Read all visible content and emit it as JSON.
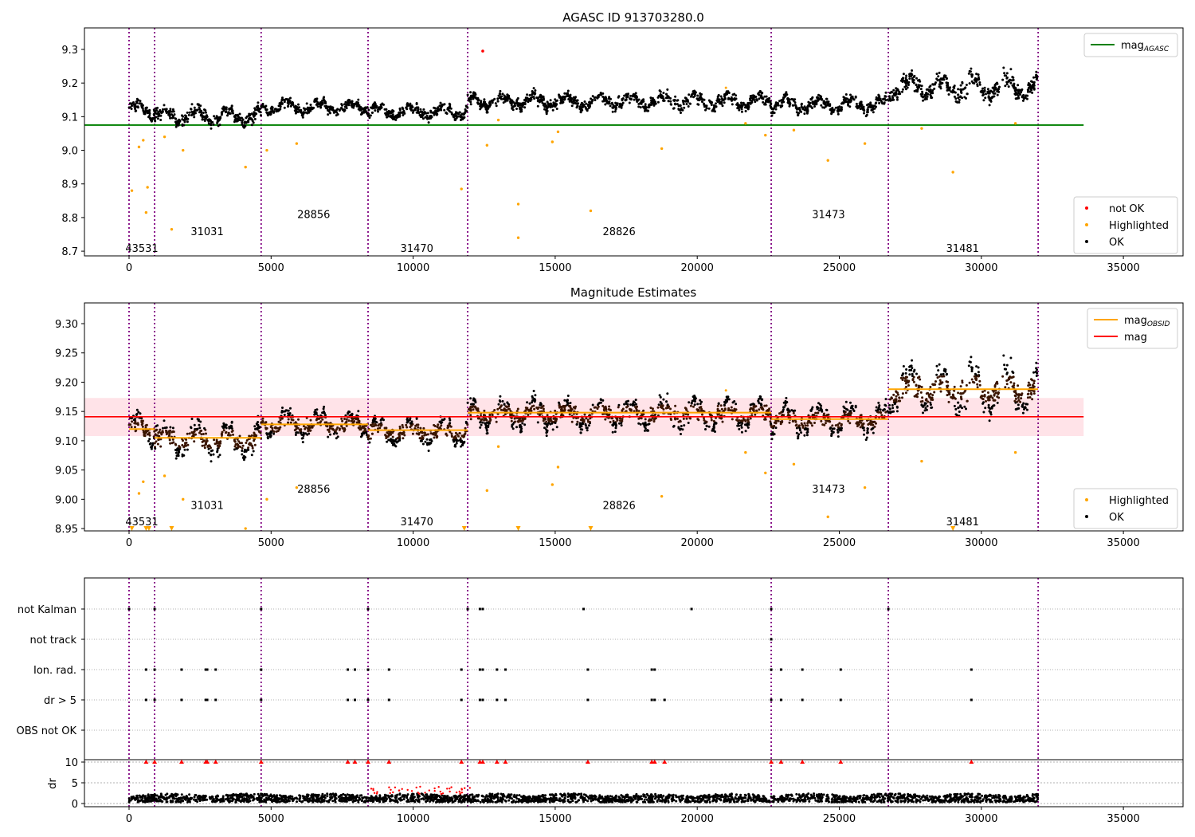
{
  "chart_data": [
    {
      "type": "scatter",
      "title": "AGASC ID 913703280.0",
      "xlim": [
        -1570,
        37100
      ],
      "ylim": [
        8.686,
        9.364
      ],
      "xticks": [
        0,
        5000,
        10000,
        15000,
        20000,
        25000,
        30000,
        35000
      ],
      "yticks": [
        "8.7",
        "8.8",
        "8.9",
        "9.0",
        "9.1",
        "9.2",
        "9.3"
      ],
      "mag_agasc": 9.075,
      "mag_agasc_xrange": [
        -1570,
        33600
      ],
      "legend_top": {
        "placement": "top-right",
        "entries": [
          {
            "label": "mag",
            "sub": "AGASC",
            "color": "#008000"
          }
        ]
      },
      "legend_bottom": {
        "placement": "bottom-right",
        "entries": [
          {
            "label": "not OK",
            "color": "#ff0000"
          },
          {
            "label": "Highlighted",
            "color": "#ffa500"
          },
          {
            "label": "OK",
            "color": "#000000"
          }
        ]
      },
      "segment_labels": [
        {
          "text": "43531",
          "x": 450,
          "y": 8.71
        },
        {
          "text": "31031",
          "x": 2750,
          "y": 8.76
        },
        {
          "text": "28856",
          "x": 6500,
          "y": 8.81
        },
        {
          "text": "31470",
          "x": 10130,
          "y": 8.71
        },
        {
          "text": "28826",
          "x": 17250,
          "y": 8.76
        },
        {
          "text": "31473",
          "x": 24620,
          "y": 8.81
        },
        {
          "text": "31481",
          "x": 29340,
          "y": 8.71
        }
      ],
      "not_ok_points": [
        [
          12450,
          9.295
        ]
      ],
      "highlighted_outliers": [
        [
          100,
          8.88
        ],
        [
          350,
          9.01
        ],
        [
          500,
          9.03
        ],
        [
          600,
          8.815
        ],
        [
          650,
          8.89
        ],
        [
          1250,
          9.04
        ],
        [
          1500,
          8.765
        ],
        [
          1900,
          9.0
        ],
        [
          4100,
          8.95
        ],
        [
          4850,
          9.0
        ],
        [
          5900,
          9.02
        ],
        [
          11700,
          8.885
        ],
        [
          12600,
          9.015
        ],
        [
          13000,
          9.09
        ],
        [
          13700,
          8.84
        ],
        [
          13700,
          8.74
        ],
        [
          14900,
          9.025
        ],
        [
          15100,
          9.055
        ],
        [
          16250,
          8.82
        ],
        [
          18750,
          9.005
        ],
        [
          21700,
          9.08
        ],
        [
          22400,
          9.045
        ],
        [
          23400,
          9.06
        ],
        [
          24600,
          8.97
        ],
        [
          25900,
          9.02
        ],
        [
          27900,
          9.065
        ],
        [
          29000,
          8.935
        ],
        [
          31200,
          9.08
        ]
      ]
    },
    {
      "type": "scatter",
      "title": "Magnitude Estimates",
      "xlim": [
        -1570,
        37100
      ],
      "ylim": [
        8.946,
        9.3354
      ],
      "xticks": [
        0,
        5000,
        10000,
        15000,
        20000,
        25000,
        30000,
        35000
      ],
      "yticks": [
        "8.95",
        "9.00",
        "9.05",
        "9.10",
        "9.15",
        "9.20",
        "9.25",
        "9.30"
      ],
      "mag": 9.141,
      "mag_band": [
        9.108,
        9.173
      ],
      "mag_xrange": [
        -1570,
        33600
      ],
      "legend_top": {
        "placement": "top-right",
        "entries": [
          {
            "label": "mag",
            "sub": "OBSID",
            "color": "#ffa500"
          },
          {
            "label": "mag",
            "sub": "",
            "color": "#ff0000"
          }
        ]
      },
      "legend_bottom": {
        "placement": "bottom-right",
        "entries": [
          {
            "label": "Highlighted",
            "color": "#ffa500"
          },
          {
            "label": "OK",
            "color": "#000000"
          }
        ]
      },
      "segment_labels": [
        {
          "text": "43531",
          "x": 450,
          "y": 8.962
        },
        {
          "text": "31031",
          "x": 2750,
          "y": 8.99
        },
        {
          "text": "28856",
          "x": 6500,
          "y": 9.018
        },
        {
          "text": "31470",
          "x": 10130,
          "y": 8.962
        },
        {
          "text": "28826",
          "x": 17250,
          "y": 8.99
        },
        {
          "text": "31473",
          "x": 24620,
          "y": 9.018
        },
        {
          "text": "31481",
          "x": 29340,
          "y": 8.962
        }
      ],
      "clipped_low_x": [
        100,
        600,
        700,
        1500,
        11800,
        13700,
        16250,
        29000
      ]
    },
    {
      "type": "scatter",
      "flag_rows": [
        "not Kalman",
        "not track",
        "Ion. rad.",
        "dr > 5",
        "OBS not OK"
      ],
      "flag_events": {
        "not Kalman": [
          0,
          900,
          4650,
          8413,
          11919,
          12350,
          12450,
          16000,
          19800,
          22604,
          26727
        ],
        "not track": [
          22604
        ],
        "Ion. rad.": [
          600,
          900,
          1850,
          2700,
          2750,
          3050,
          4650,
          7700,
          7950,
          8413,
          9150,
          11700,
          12350,
          12450,
          12950,
          13250,
          16150,
          18400,
          18500,
          22604,
          22950,
          23700,
          25050,
          29650
        ],
        "dr > 5": [
          600,
          900,
          1850,
          2700,
          2750,
          3050,
          4650,
          7700,
          7950,
          8413,
          9150,
          11700,
          12350,
          12450,
          12950,
          13250,
          16150,
          18400,
          18500,
          18850,
          22604,
          22950,
          23700,
          25050,
          29650
        ],
        "OBS not OK": []
      },
      "dr_ylabel": "dr",
      "dr_yticks": [
        "0",
        "5",
        "10"
      ],
      "dr_ylim": [
        -0.5,
        10.6
      ],
      "dr_clip": 10
    }
  ],
  "obsid_segments": [
    {
      "start": 0,
      "end": 900,
      "mean": 9.12,
      "sd": 0.018,
      "mag_obsid": 9.12
    },
    {
      "start": 900,
      "end": 4650,
      "mean": 9.103,
      "sd": 0.02,
      "mag_obsid": 9.105
    },
    {
      "start": 4650,
      "end": 8413,
      "mean": 9.128,
      "sd": 0.016,
      "mag_obsid": 9.128
    },
    {
      "start": 8413,
      "end": 11919,
      "mean": 9.116,
      "sd": 0.016,
      "mag_obsid": 9.118
    },
    {
      "start": 11919,
      "end": 22604,
      "mean": 9.146,
      "sd": 0.018,
      "mag_obsid": 9.148
    },
    {
      "start": 22604,
      "end": 26727,
      "mean": 9.136,
      "sd": 0.017,
      "mag_obsid": 9.137
    },
    {
      "start": 26727,
      "end": 32000,
      "mean": 9.188,
      "sd": 0.028,
      "mag_obsid": 9.188
    }
  ],
  "colors": {
    "ok": "#000000",
    "highlighted": "#ffa500",
    "not_ok": "#ff0000",
    "agasc": "#008000",
    "mag": "#ff0000",
    "band": "#ffc0cb",
    "obsid_boundary": "#800080"
  }
}
